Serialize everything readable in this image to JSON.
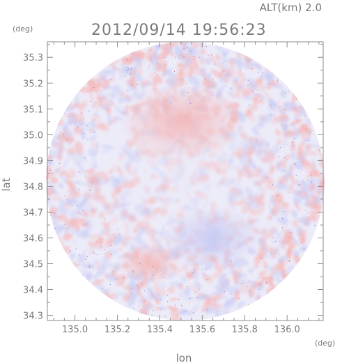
{
  "header": {
    "altitude_label": "ALT(km)  2.0",
    "timestamp": "2012/09/14 19:56:23"
  },
  "colors": {
    "frame": "#8a8a8a",
    "text": "#7a7a7a",
    "positive": "#f6b6b6",
    "negative": "#c8ccf4",
    "neutral": "#ecebf8"
  },
  "chart_data": {
    "type": "heatmap",
    "title": "2012/09/14 19:56:23",
    "subtitle": "ALT(km)  2.0",
    "xlabel": "lon",
    "ylabel": "lat",
    "x_unit": "(deg)",
    "y_unit": "(deg)",
    "xlim": [
      134.87,
      136.17
    ],
    "ylim": [
      34.28,
      35.36
    ],
    "x_ticks": [
      135.0,
      135.2,
      135.4,
      135.6,
      135.8,
      136.0
    ],
    "x_tick_labels": [
      "135.0",
      "135.2",
      "135.4",
      "135.6",
      "135.8",
      "136.0"
    ],
    "y_ticks": [
      34.3,
      34.4,
      34.5,
      34.6,
      34.7,
      34.8,
      34.9,
      35.0,
      35.1,
      35.2,
      35.3
    ],
    "y_tick_labels": [
      "34.3",
      "34.4",
      "34.5",
      "34.6",
      "34.7",
      "34.8",
      "34.9",
      "35.0",
      "35.1",
      "35.2",
      "35.3"
    ],
    "coverage": {
      "shape": "circle",
      "center_lon": 135.52,
      "center_lat": 34.82,
      "radius_deg_lat": 0.54
    },
    "features": [
      {
        "kind": "positive",
        "lon": 135.5,
        "lat": 35.05,
        "strength": 0.8
      },
      {
        "kind": "negative",
        "lon": 135.65,
        "lat": 34.6,
        "strength": 0.6
      },
      {
        "kind": "positive",
        "lon": 135.35,
        "lat": 34.5,
        "strength": 0.3
      }
    ],
    "grid": false,
    "legend": "none"
  }
}
